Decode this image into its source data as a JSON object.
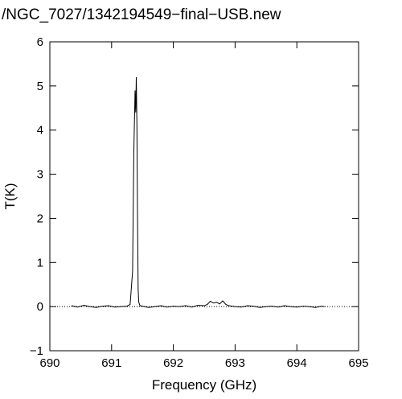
{
  "chart_data": {
    "type": "line",
    "title": "/NGC_7027/1342194549−final−USB.new",
    "x_label": "Frequency (GHz)",
    "y_label": "T(K)",
    "x": [
      690.35,
      690.45,
      690.55,
      690.65,
      690.75,
      690.85,
      690.95,
      691.05,
      691.15,
      691.25,
      691.3,
      691.34,
      691.36,
      691.38,
      691.39,
      691.4,
      691.41,
      691.42,
      691.43,
      691.44,
      691.46,
      691.5,
      691.6,
      691.7,
      691.8,
      691.9,
      692.0,
      692.1,
      692.2,
      692.3,
      692.4,
      692.5,
      692.55,
      692.6,
      692.65,
      692.7,
      692.75,
      692.8,
      692.85,
      692.9,
      693.0,
      693.1,
      693.2,
      693.3,
      693.4,
      693.5,
      693.6,
      693.7,
      693.8,
      693.9,
      694.0,
      694.1,
      694.2,
      694.3,
      694.4,
      694.45
    ],
    "series": [
      {
        "color": "#000000",
        "values": [
          0.02,
          -0.01,
          0.03,
          0.0,
          -0.02,
          0.01,
          0.02,
          -0.01,
          0.0,
          0.01,
          0.05,
          0.8,
          3.5,
          4.9,
          4.4,
          5.2,
          4.1,
          2.0,
          0.4,
          0.1,
          0.02,
          0.01,
          -0.02,
          0.0,
          0.02,
          -0.01,
          0.01,
          0.0,
          0.02,
          -0.01,
          0.03,
          0.02,
          0.05,
          0.12,
          0.08,
          0.1,
          0.06,
          0.13,
          0.05,
          0.02,
          0.0,
          -0.01,
          0.02,
          0.01,
          -0.02,
          0.0,
          0.01,
          -0.01,
          0.02,
          0.0,
          -0.01,
          0.01,
          0.0,
          -0.02,
          0.01,
          0.0
        ]
      }
    ],
    "xlim": [
      690,
      695
    ],
    "xticks": [
      690,
      691,
      692,
      693,
      694,
      695
    ],
    "ylim": [
      -1,
      6
    ],
    "yticks": [
      {
        "value": -1,
        "label": "−1"
      },
      0,
      1,
      2,
      3,
      4,
      5,
      6
    ],
    "zero_line": true
  }
}
